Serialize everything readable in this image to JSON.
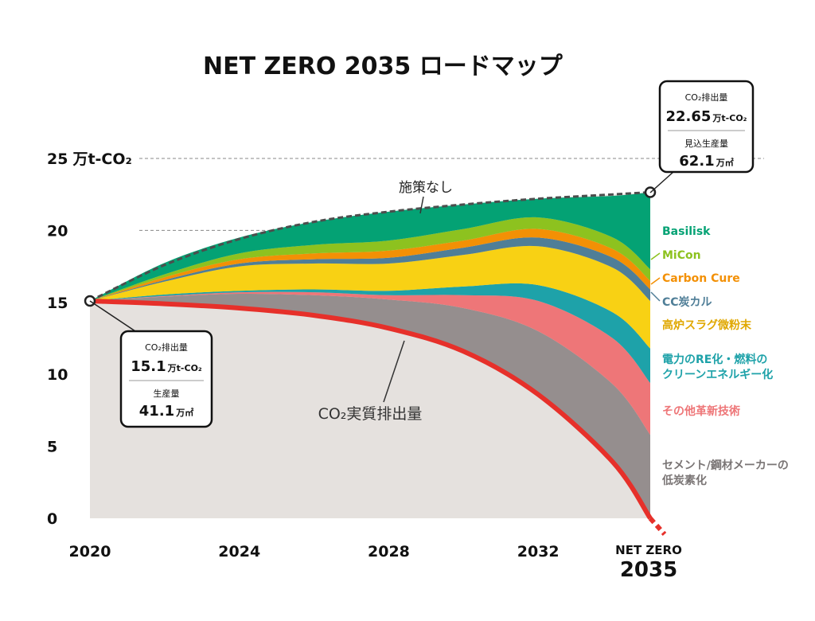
{
  "chart_data": {
    "type": "area",
    "title": "NET ZERO 2035 ロードマップ",
    "y_unit": "万t-CO₂",
    "ylim": [
      0,
      25
    ],
    "yticks": [
      0,
      5,
      10,
      15,
      20,
      25
    ],
    "x": [
      2020,
      2022,
      2024,
      2026,
      2028,
      2030,
      2032,
      2034,
      2035
    ],
    "xticks": [
      {
        "value": 2020,
        "label": "2020"
      },
      {
        "value": 2024,
        "label": "2024"
      },
      {
        "value": 2028,
        "label": "2028"
      },
      {
        "value": 2032,
        "label": "2032"
      },
      {
        "value": 2035,
        "label_top": "NET ZERO",
        "label_bottom": "2035"
      }
    ],
    "grid": "dashed-horizontal",
    "baseline": {
      "name": "施策なし",
      "values": [
        15.1,
        17.6,
        19.4,
        20.6,
        21.3,
        21.8,
        22.2,
        22.5,
        22.65
      ]
    },
    "net_emissions": {
      "name": "CO₂実質排出量",
      "values": [
        15.1,
        14.9,
        14.6,
        14.1,
        13.2,
        11.6,
        8.6,
        3.9,
        0
      ]
    },
    "series": [
      {
        "name": "セメント/鋼材メーカーの低炭素化",
        "color": "#958e8e",
        "values": [
          0,
          0.5,
          1.0,
          1.4,
          2.0,
          3.0,
          4.4,
          5.4,
          5.8
        ]
      },
      {
        "name": "その他革新技術",
        "color": "#ee7678",
        "values": [
          0,
          0.05,
          0.1,
          0.2,
          0.3,
          0.9,
          2.1,
          3.2,
          3.6
        ]
      },
      {
        "name": "電力のRE化・燃料のクリーンエネルギー化",
        "color": "#1ea2a9",
        "values": [
          0,
          0.1,
          0.1,
          0.2,
          0.3,
          0.6,
          1.1,
          1.8,
          2.4
        ]
      },
      {
        "name": "高炉スラグ微粉末",
        "color": "#f8d114",
        "values": [
          0,
          0.9,
          1.7,
          1.8,
          1.9,
          2.2,
          2.7,
          3.1,
          3.3
        ]
      },
      {
        "name": "CC炭カル",
        "color": "#4f7e97",
        "values": [
          0,
          0.1,
          0.2,
          0.3,
          0.4,
          0.5,
          0.6,
          0.7,
          0.8
        ]
      },
      {
        "name": "Carbon Cure",
        "color": "#f39005",
        "values": [
          0,
          0.2,
          0.3,
          0.4,
          0.5,
          0.5,
          0.6,
          0.6,
          0.6
        ]
      },
      {
        "name": "MiCon",
        "color": "#8dc21f",
        "values": [
          0,
          0.2,
          0.4,
          0.6,
          0.7,
          0.8,
          0.8,
          0.8,
          0.8
        ]
      },
      {
        "name": "Basilisk",
        "color": "#04a274",
        "values": [
          0,
          0.8,
          1.1,
          1.6,
          2.0,
          1.7,
          1.3,
          2.9,
          5.35
        ]
      }
    ],
    "callouts": [
      {
        "label_top": "CO₂排出量",
        "value_top": "15.1",
        "unit_top": "万t-CO₂",
        "label_bottom": "生産量",
        "value_bottom": "41.1",
        "unit_bottom": "万㎡"
      },
      {
        "label_top": "CO₂排出量",
        "value_top": "22.65",
        "unit_top": "万t-CO₂",
        "label_bottom": "見込生産量",
        "value_bottom": "62.1",
        "unit_bottom": "万㎡"
      }
    ],
    "colors": {
      "background_area": "#e5e1de",
      "baseline_line": "#4d4d4d",
      "net_line": "#e6302a",
      "grid": "#888888"
    }
  }
}
